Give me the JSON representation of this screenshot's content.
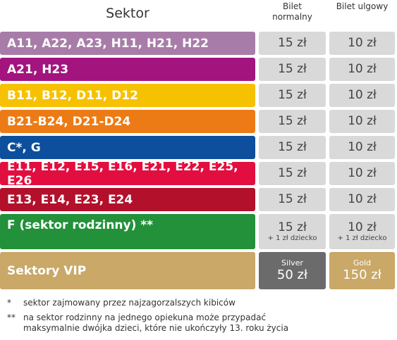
{
  "header": {
    "sector": "Sektor",
    "normal": "Bilet normalny",
    "reduced": "Bilet ulgowy"
  },
  "rows": [
    {
      "sector": "A11, A22, A23, H11, H21, H22",
      "color": "#a87ca9",
      "normal": "15 zł",
      "reduced": "10 zł"
    },
    {
      "sector": "A21, H23",
      "color": "#a3147f",
      "normal": "15 zł",
      "reduced": "10 zł"
    },
    {
      "sector": "B11, B12, D11, D12",
      "color": "#f6c100",
      "normal": "15 zł",
      "reduced": "10 zł"
    },
    {
      "sector": "B21-B24, D21-D24",
      "color": "#ec7b15",
      "normal": "15 zł",
      "reduced": "10 zł"
    },
    {
      "sector": "C*, G",
      "color": "#0d4f9c",
      "normal": "15 zł",
      "reduced": "10 zł"
    },
    {
      "sector": "E11, E12, E15, E16, E21, E22, E25, E26",
      "color": "#e20e3f",
      "normal": "15 zł",
      "reduced": "10 zł"
    },
    {
      "sector": "E13, E14, E23, E24",
      "color": "#b2102b",
      "normal": "15 zł",
      "reduced": "10 zł"
    },
    {
      "sector": "F (sektor rodzinny) **",
      "color": "#22913a",
      "normal": "15 zł",
      "normal_note": "+ 1 zł dziecko",
      "reduced": "10 zł",
      "reduced_note": "+ 1 zł dziecko"
    },
    {
      "sector": "Sektory VIP",
      "color": "#c9a868",
      "normal_tier": "Silver",
      "normal": "50 zł",
      "normal_color": "#6b6b6b",
      "reduced_tier": "Gold",
      "reduced": "150 zł",
      "reduced_color": "#c9a868"
    }
  ],
  "footnotes": [
    {
      "mark": "*",
      "text": "sektor zajmowany przez najzagorzalszych kibiców"
    },
    {
      "mark": "**",
      "text": "na sektor rodzinny na jednego opiekuna może przypadać maksymalnie dwójka dzieci, które nie ukończyły 13. roku życia"
    }
  ]
}
